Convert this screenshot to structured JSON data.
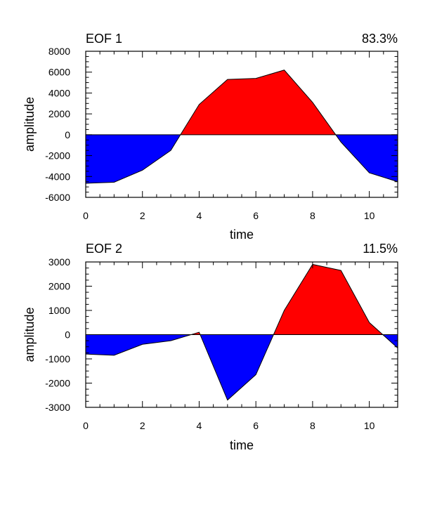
{
  "chart_data": [
    {
      "type": "area",
      "title_left": "EOF 1",
      "title_right": "83.3%",
      "xlabel": "time",
      "ylabel": "amplitude",
      "xlim": [
        0,
        11
      ],
      "ylim": [
        -6000,
        8000
      ],
      "x_ticks": [
        0,
        2,
        4,
        6,
        8,
        10
      ],
      "y_ticks": [
        -6000,
        -4000,
        -2000,
        0,
        2000,
        4000,
        6000,
        8000
      ],
      "x": [
        0,
        1,
        2,
        3,
        4,
        5,
        6,
        7,
        8,
        9,
        10,
        11
      ],
      "values": [
        -4650,
        -4550,
        -3400,
        -1500,
        2900,
        5300,
        5400,
        6200,
        3100,
        -700,
        -3650,
        -4500
      ],
      "positive_color": "#ff0000",
      "negative_color": "#0000ff"
    },
    {
      "type": "area",
      "title_left": "EOF 2",
      "title_right": "11.5%",
      "xlabel": "time",
      "ylabel": "amplitude",
      "xlim": [
        0,
        11
      ],
      "ylim": [
        -3000,
        3000
      ],
      "x_ticks": [
        0,
        2,
        4,
        6,
        8,
        10
      ],
      "y_ticks": [
        -3000,
        -2000,
        -1000,
        0,
        1000,
        2000,
        3000
      ],
      "x": [
        0,
        1,
        2,
        3,
        4,
        5,
        6,
        7,
        8,
        9,
        10,
        11
      ],
      "values": [
        -800,
        -850,
        -400,
        -250,
        100,
        -2700,
        -1650,
        1000,
        2900,
        2650,
        500,
        -550
      ],
      "positive_color": "#ff0000",
      "negative_color": "#0000ff"
    }
  ]
}
